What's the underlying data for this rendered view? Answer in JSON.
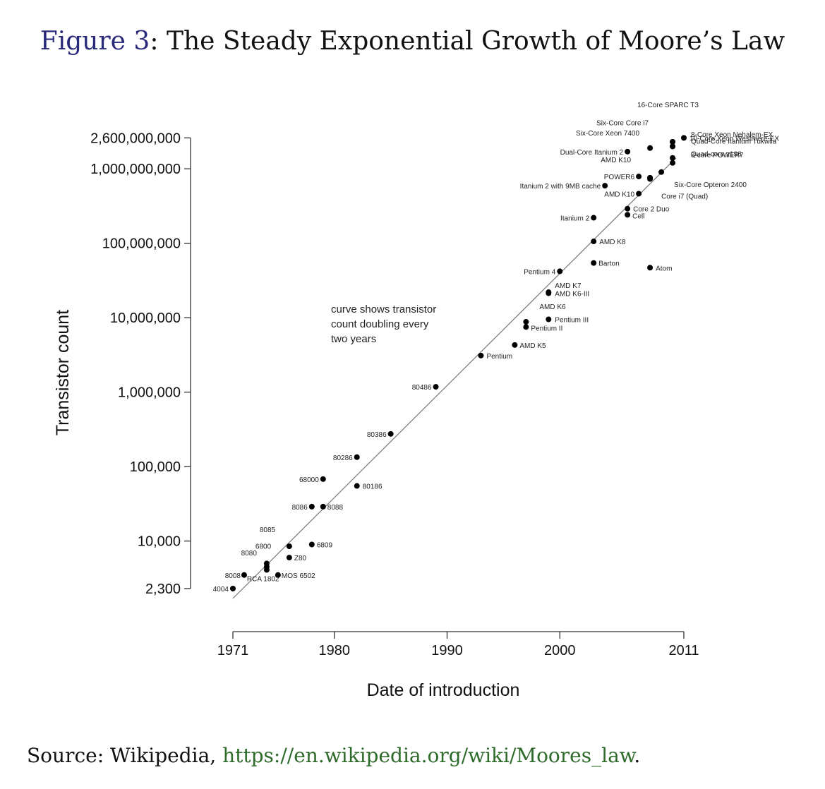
{
  "figure": {
    "ref": "Figure 3",
    "sep": ":",
    "title": "The Steady Exponential Growth of Moore’s Law"
  },
  "source": {
    "prefix": "Source: Wikipedia, ",
    "link": "https://en.wikipedia.org/wiki/Moores_law",
    "suffix": "."
  },
  "chart_data": {
    "type": "scatter",
    "xlabel": "Date of introduction",
    "ylabel": "Transistor count",
    "x_scale": "linear",
    "y_scale": "log",
    "xlim": [
      1971,
      2011
    ],
    "ylim": [
      1000,
      4000000000
    ],
    "x_ticks": [
      1971,
      1980,
      1990,
      2000,
      2011
    ],
    "y_ticks": [
      {
        "value": 2300,
        "label": "2,300"
      },
      {
        "value": 10000,
        "label": "10,000"
      },
      {
        "value": 100000,
        "label": "100,000"
      },
      {
        "value": 1000000,
        "label": "1,000,000"
      },
      {
        "value": 10000000,
        "label": "10,000,000"
      },
      {
        "value": 100000000,
        "label": "100,000,000"
      },
      {
        "value": 1000000000,
        "label": "1,000,000,000"
      },
      {
        "value": 2600000000,
        "label": "2,600,000,000"
      }
    ],
    "trend_line": {
      "annotation": [
        "curve shows transistor",
        "count doubling every",
        "two years"
      ]
    },
    "points": [
      {
        "label": "4004",
        "x": 1971.0,
        "y": 2300
      },
      {
        "label": "8008",
        "x": 1972.0,
        "y": 3500
      },
      {
        "label": "8080",
        "x": 1974.0,
        "y": 4500
      },
      {
        "label": "RCA 1802",
        "x": 1974.0,
        "y": 5000
      },
      {
        "label": "MOS 6502",
        "x": 1975.0,
        "y": 3500
      },
      {
        "label": "6800",
        "x": 1974.0,
        "y": 4100
      },
      {
        "label": "Z80",
        "x": 1976.0,
        "y": 6000
      },
      {
        "label": "8085",
        "x": 1976.0,
        "y": 8500
      },
      {
        "label": "6809",
        "x": 1978.0,
        "y": 9000
      },
      {
        "label": "8086",
        "x": 1978.0,
        "y": 29000
      },
      {
        "label": "8088",
        "x": 1979.0,
        "y": 29000
      },
      {
        "label": "68000",
        "x": 1979.0,
        "y": 68000
      },
      {
        "label": "80186",
        "x": 1982.0,
        "y": 55000
      },
      {
        "label": "80286",
        "x": 1982.0,
        "y": 134000
      },
      {
        "label": "80386",
        "x": 1985.0,
        "y": 275000
      },
      {
        "label": "80486",
        "x": 1989.0,
        "y": 1180000
      },
      {
        "label": "Pentium",
        "x": 1993.0,
        "y": 3100000
      },
      {
        "label": "AMD K5",
        "x": 1996.0,
        "y": 4300000
      },
      {
        "label": "Pentium II",
        "x": 1997.0,
        "y": 7500000
      },
      {
        "label": "AMD K6",
        "x": 1997.0,
        "y": 8800000
      },
      {
        "label": "Pentium III",
        "x": 1999.0,
        "y": 9500000
      },
      {
        "label": "AMD K6-III",
        "x": 1999.0,
        "y": 21300000
      },
      {
        "label": "AMD K7",
        "x": 1999.0,
        "y": 22000000
      },
      {
        "label": "Pentium 4",
        "x": 2000.0,
        "y": 42000000
      },
      {
        "label": "Barton",
        "x": 2003.0,
        "y": 54300000
      },
      {
        "label": "AMD K8",
        "x": 2003.0,
        "y": 105900000
      },
      {
        "label": "Itanium 2",
        "x": 2003.0,
        "y": 220000000
      },
      {
        "label": "Cell",
        "x": 2006.0,
        "y": 241000000
      },
      {
        "label": "Core 2 Duo",
        "x": 2006.0,
        "y": 291000000
      },
      {
        "label": "Atom",
        "x": 2008.0,
        "y": 47000000
      },
      {
        "label": "AMD K10",
        "x": 2007.0,
        "y": 463000000
      },
      {
        "label": "Itanium 2 with 9MB cache",
        "x": 2004.0,
        "y": 592000000
      },
      {
        "label": "POWER6",
        "x": 2007.0,
        "y": 789000000
      },
      {
        "label": "AMD K10",
        "x": 2008.0,
        "y": 758000000
      },
      {
        "label": "Core i7 (Quad)",
        "x": 2008.0,
        "y": 731000000
      },
      {
        "label": "Dual-Core Itanium 2",
        "x": 2006.0,
        "y": 1700000000
      },
      {
        "label": "Six-Core Xeon 7400",
        "x": 2008.0,
        "y": 1900000000
      },
      {
        "label": "Six-Core Opteron 2400",
        "x": 2009.0,
        "y": 904000000
      },
      {
        "label": "Six-Core Core i7",
        "x": 2010.0,
        "y": 2000000000
      },
      {
        "label": "16-Core SPARC T3",
        "x": 2010.0,
        "y": 2300000000
      },
      {
        "label": "10-Core Xeon Westmere-EX",
        "x": 2011.0,
        "y": 2600000000
      },
      {
        "label": "8-core POWER7",
        "x": 2010.0,
        "y": 1200000000
      },
      {
        "label": "Quad-core z196",
        "x": 2010.0,
        "y": 1400000000
      },
      {
        "label": "Quad-Core Itanium Tukwila",
        "x": 2010.0,
        "y": 2000000000
      },
      {
        "label": "8-Core Xeon Nehalem-EX",
        "x": 2010.0,
        "y": 2300000000
      }
    ]
  }
}
